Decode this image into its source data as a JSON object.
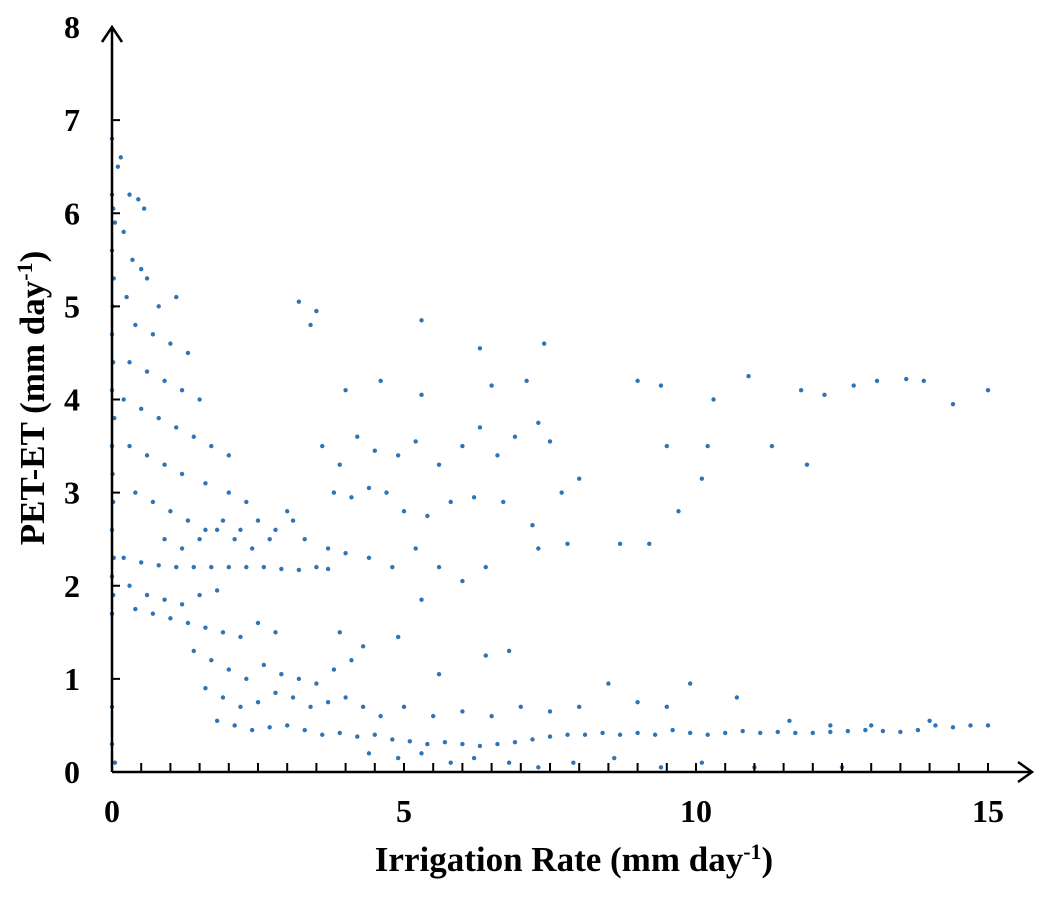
{
  "chart_data": {
    "type": "scatter",
    "title": "",
    "xlabel_main": "Irrigation Rate (mm day",
    "xlabel_sup": "-1",
    "xlabel_end": ")",
    "ylabel_main": "PET-ET (mm day",
    "ylabel_sup": "-1",
    "ylabel_end": ")",
    "xlim": [
      0,
      15
    ],
    "ylim": [
      0,
      8
    ],
    "x_ticks": [
      0,
      5,
      10,
      15
    ],
    "x_tick_labels": [
      "0",
      "5",
      "10",
      "15"
    ],
    "x_minor_step": 0.5,
    "y_ticks": [
      0,
      1,
      2,
      3,
      4,
      5,
      6,
      7,
      8
    ],
    "y_tick_labels": [
      "0",
      "1",
      "2",
      "3",
      "4",
      "5",
      "6",
      "7",
      "8"
    ],
    "grid": false,
    "legend": "none",
    "marker_color": "#2E75B6",
    "series": [
      {
        "values": [
          [
            0.0,
            6.8
          ],
          [
            0.0,
            6.2
          ],
          [
            0.02,
            6.05
          ],
          [
            0.05,
            5.9
          ],
          [
            0.0,
            5.6
          ],
          [
            0.03,
            5.3
          ],
          [
            0.01,
            5.0
          ],
          [
            0.0,
            4.7
          ],
          [
            0.02,
            4.4
          ],
          [
            0.0,
            4.1
          ],
          [
            0.04,
            3.8
          ],
          [
            0.0,
            3.5
          ],
          [
            0.01,
            3.2
          ],
          [
            0.02,
            2.9
          ],
          [
            0.0,
            2.6
          ],
          [
            0.03,
            2.3
          ],
          [
            0.0,
            2.1
          ],
          [
            0.02,
            1.9
          ],
          [
            0.0,
            1.7
          ],
          [
            0.0,
            0.7
          ],
          [
            0.0,
            0.3
          ],
          [
            0.05,
            0.1
          ],
          [
            0.1,
            6.5
          ],
          [
            0.15,
            6.6
          ],
          [
            0.3,
            6.2
          ],
          [
            0.45,
            6.15
          ],
          [
            0.55,
            6.05
          ],
          [
            0.2,
            5.8
          ],
          [
            0.35,
            5.5
          ],
          [
            0.5,
            5.4
          ],
          [
            0.6,
            5.3
          ],
          [
            0.25,
            5.1
          ],
          [
            0.8,
            5.0
          ],
          [
            1.1,
            5.1
          ],
          [
            0.4,
            4.8
          ],
          [
            0.7,
            4.7
          ],
          [
            1.0,
            4.6
          ],
          [
            1.3,
            4.5
          ],
          [
            0.3,
            4.4
          ],
          [
            0.6,
            4.3
          ],
          [
            0.9,
            4.2
          ],
          [
            1.2,
            4.1
          ],
          [
            1.5,
            4.0
          ],
          [
            0.2,
            4.0
          ],
          [
            0.5,
            3.9
          ],
          [
            0.8,
            3.8
          ],
          [
            1.1,
            3.7
          ],
          [
            1.4,
            3.6
          ],
          [
            1.7,
            3.5
          ],
          [
            2.0,
            3.4
          ],
          [
            0.3,
            3.5
          ],
          [
            0.6,
            3.4
          ],
          [
            0.9,
            3.3
          ],
          [
            1.2,
            3.2
          ],
          [
            1.6,
            3.1
          ],
          [
            2.0,
            3.0
          ],
          [
            2.3,
            2.9
          ],
          [
            0.4,
            3.0
          ],
          [
            0.7,
            2.9
          ],
          [
            1.0,
            2.8
          ],
          [
            1.3,
            2.7
          ],
          [
            1.6,
            2.6
          ],
          [
            1.9,
            2.7
          ],
          [
            2.2,
            2.6
          ],
          [
            2.5,
            2.7
          ],
          [
            2.8,
            2.6
          ],
          [
            3.0,
            2.8
          ],
          [
            0.9,
            2.5
          ],
          [
            1.2,
            2.4
          ],
          [
            1.5,
            2.5
          ],
          [
            1.8,
            2.6
          ],
          [
            2.1,
            2.5
          ],
          [
            2.4,
            2.4
          ],
          [
            2.7,
            2.5
          ],
          [
            3.1,
            2.7
          ],
          [
            0.2,
            2.3
          ],
          [
            0.5,
            2.25
          ],
          [
            0.8,
            2.22
          ],
          [
            1.1,
            2.2
          ],
          [
            1.4,
            2.2
          ],
          [
            1.7,
            2.2
          ],
          [
            2.0,
            2.2
          ],
          [
            2.3,
            2.2
          ],
          [
            2.6,
            2.2
          ],
          [
            2.9,
            2.18
          ],
          [
            3.2,
            2.17
          ],
          [
            3.5,
            2.2
          ],
          [
            3.7,
            2.18
          ],
          [
            0.3,
            2.0
          ],
          [
            0.6,
            1.9
          ],
          [
            0.9,
            1.85
          ],
          [
            1.2,
            1.8
          ],
          [
            1.5,
            1.9
          ],
          [
            1.8,
            1.95
          ],
          [
            0.4,
            1.75
          ],
          [
            0.7,
            1.7
          ],
          [
            1.0,
            1.65
          ],
          [
            1.3,
            1.6
          ],
          [
            1.6,
            1.55
          ],
          [
            1.9,
            1.5
          ],
          [
            2.2,
            1.45
          ],
          [
            2.5,
            1.6
          ],
          [
            2.8,
            1.5
          ],
          [
            1.4,
            1.3
          ],
          [
            1.7,
            1.2
          ],
          [
            2.0,
            1.1
          ],
          [
            2.3,
            1.0
          ],
          [
            2.6,
            1.15
          ],
          [
            2.9,
            1.05
          ],
          [
            3.2,
            1.0
          ],
          [
            3.5,
            0.95
          ],
          [
            3.8,
            1.1
          ],
          [
            4.1,
            1.2
          ],
          [
            1.6,
            0.9
          ],
          [
            1.9,
            0.8
          ],
          [
            2.2,
            0.7
          ],
          [
            2.5,
            0.75
          ],
          [
            2.8,
            0.85
          ],
          [
            3.1,
            0.8
          ],
          [
            3.4,
            0.7
          ],
          [
            3.7,
            0.75
          ],
          [
            4.0,
            0.8
          ],
          [
            4.3,
            0.7
          ],
          [
            1.8,
            0.55
          ],
          [
            2.1,
            0.5
          ],
          [
            2.4,
            0.45
          ],
          [
            2.7,
            0.48
          ],
          [
            3.0,
            0.5
          ],
          [
            3.3,
            0.45
          ],
          [
            3.6,
            0.4
          ],
          [
            3.9,
            0.42
          ],
          [
            4.2,
            0.38
          ],
          [
            4.5,
            0.4
          ],
          [
            4.8,
            0.35
          ],
          [
            5.1,
            0.33
          ],
          [
            5.4,
            0.3
          ],
          [
            5.7,
            0.32
          ],
          [
            6.0,
            0.3
          ],
          [
            6.3,
            0.28
          ],
          [
            6.6,
            0.3
          ],
          [
            6.9,
            0.32
          ],
          [
            7.2,
            0.35
          ],
          [
            7.5,
            0.38
          ],
          [
            7.8,
            0.4
          ],
          [
            8.1,
            0.4
          ],
          [
            8.4,
            0.42
          ],
          [
            8.7,
            0.4
          ],
          [
            9.0,
            0.42
          ],
          [
            9.3,
            0.4
          ],
          [
            9.6,
            0.45
          ],
          [
            9.9,
            0.42
          ],
          [
            10.2,
            0.4
          ],
          [
            10.5,
            0.42
          ],
          [
            10.8,
            0.44
          ],
          [
            11.1,
            0.42
          ],
          [
            11.4,
            0.43
          ],
          [
            11.7,
            0.42
          ],
          [
            12.0,
            0.42
          ],
          [
            12.3,
            0.43
          ],
          [
            12.6,
            0.44
          ],
          [
            12.9,
            0.45
          ],
          [
            13.2,
            0.44
          ],
          [
            13.5,
            0.43
          ],
          [
            13.8,
            0.45
          ],
          [
            14.1,
            0.5
          ],
          [
            14.4,
            0.48
          ],
          [
            14.7,
            0.5
          ],
          [
            15.0,
            0.5
          ],
          [
            4.4,
            0.2
          ],
          [
            4.9,
            0.15
          ],
          [
            5.3,
            0.2
          ],
          [
            5.8,
            0.1
          ],
          [
            6.2,
            0.15
          ],
          [
            6.8,
            0.1
          ],
          [
            7.3,
            0.05
          ],
          [
            7.9,
            0.1
          ],
          [
            8.6,
            0.15
          ],
          [
            9.4,
            0.05
          ],
          [
            10.1,
            0.1
          ],
          [
            11.0,
            0.05
          ],
          [
            12.5,
            0.05
          ],
          [
            4.6,
            0.6
          ],
          [
            5.0,
            0.7
          ],
          [
            5.5,
            0.6
          ],
          [
            6.0,
            0.65
          ],
          [
            6.5,
            0.6
          ],
          [
            7.0,
            0.7
          ],
          [
            7.5,
            0.65
          ],
          [
            8.0,
            0.7
          ],
          [
            8.5,
            0.95
          ],
          [
            9.0,
            0.75
          ],
          [
            9.5,
            0.7
          ],
          [
            9.9,
            0.95
          ],
          [
            10.7,
            0.8
          ],
          [
            11.6,
            0.55
          ],
          [
            12.3,
            0.5
          ],
          [
            13.0,
            0.5
          ],
          [
            14.0,
            0.55
          ],
          [
            3.2,
            5.05
          ],
          [
            3.5,
            4.95
          ],
          [
            3.4,
            4.8
          ],
          [
            5.3,
            4.85
          ],
          [
            6.3,
            4.55
          ],
          [
            7.4,
            4.6
          ],
          [
            4.0,
            4.1
          ],
          [
            4.6,
            4.2
          ],
          [
            5.3,
            4.05
          ],
          [
            6.5,
            4.15
          ],
          [
            7.1,
            4.2
          ],
          [
            9.0,
            4.2
          ],
          [
            9.4,
            4.15
          ],
          [
            10.3,
            4.0
          ],
          [
            10.9,
            4.25
          ],
          [
            11.8,
            4.1
          ],
          [
            12.2,
            4.05
          ],
          [
            12.7,
            4.15
          ],
          [
            13.1,
            4.2
          ],
          [
            13.6,
            4.22
          ],
          [
            13.9,
            4.2
          ],
          [
            14.4,
            3.95
          ],
          [
            15.0,
            4.1
          ],
          [
            3.6,
            3.5
          ],
          [
            3.9,
            3.3
          ],
          [
            4.2,
            3.6
          ],
          [
            4.5,
            3.45
          ],
          [
            4.9,
            3.4
          ],
          [
            5.2,
            3.55
          ],
          [
            5.6,
            3.3
          ],
          [
            6.0,
            3.5
          ],
          [
            6.3,
            3.7
          ],
          [
            6.6,
            3.4
          ],
          [
            6.9,
            3.6
          ],
          [
            7.3,
            3.75
          ],
          [
            7.5,
            3.55
          ],
          [
            9.5,
            3.5
          ],
          [
            10.2,
            3.5
          ],
          [
            11.3,
            3.5
          ],
          [
            11.9,
            3.3
          ],
          [
            3.8,
            3.0
          ],
          [
            4.1,
            2.95
          ],
          [
            4.4,
            3.05
          ],
          [
            4.7,
            3.0
          ],
          [
            5.0,
            2.8
          ],
          [
            5.4,
            2.75
          ],
          [
            5.8,
            2.9
          ],
          [
            6.2,
            2.95
          ],
          [
            6.7,
            2.9
          ],
          [
            7.2,
            2.65
          ],
          [
            7.7,
            3.0
          ],
          [
            8.0,
            3.15
          ],
          [
            9.7,
            2.8
          ],
          [
            10.1,
            3.15
          ],
          [
            3.3,
            2.5
          ],
          [
            3.7,
            2.4
          ],
          [
            4.0,
            2.35
          ],
          [
            4.4,
            2.3
          ],
          [
            4.8,
            2.2
          ],
          [
            5.2,
            2.4
          ],
          [
            5.6,
            2.2
          ],
          [
            6.0,
            2.05
          ],
          [
            6.4,
            2.2
          ],
          [
            7.3,
            2.4
          ],
          [
            7.8,
            2.45
          ],
          [
            8.7,
            2.45
          ],
          [
            9.2,
            2.45
          ],
          [
            5.3,
            1.85
          ],
          [
            6.4,
            1.25
          ],
          [
            4.9,
            1.45
          ],
          [
            5.6,
            1.05
          ],
          [
            6.8,
            1.3
          ],
          [
            3.9,
            1.5
          ],
          [
            4.3,
            1.35
          ]
        ]
      }
    ]
  }
}
